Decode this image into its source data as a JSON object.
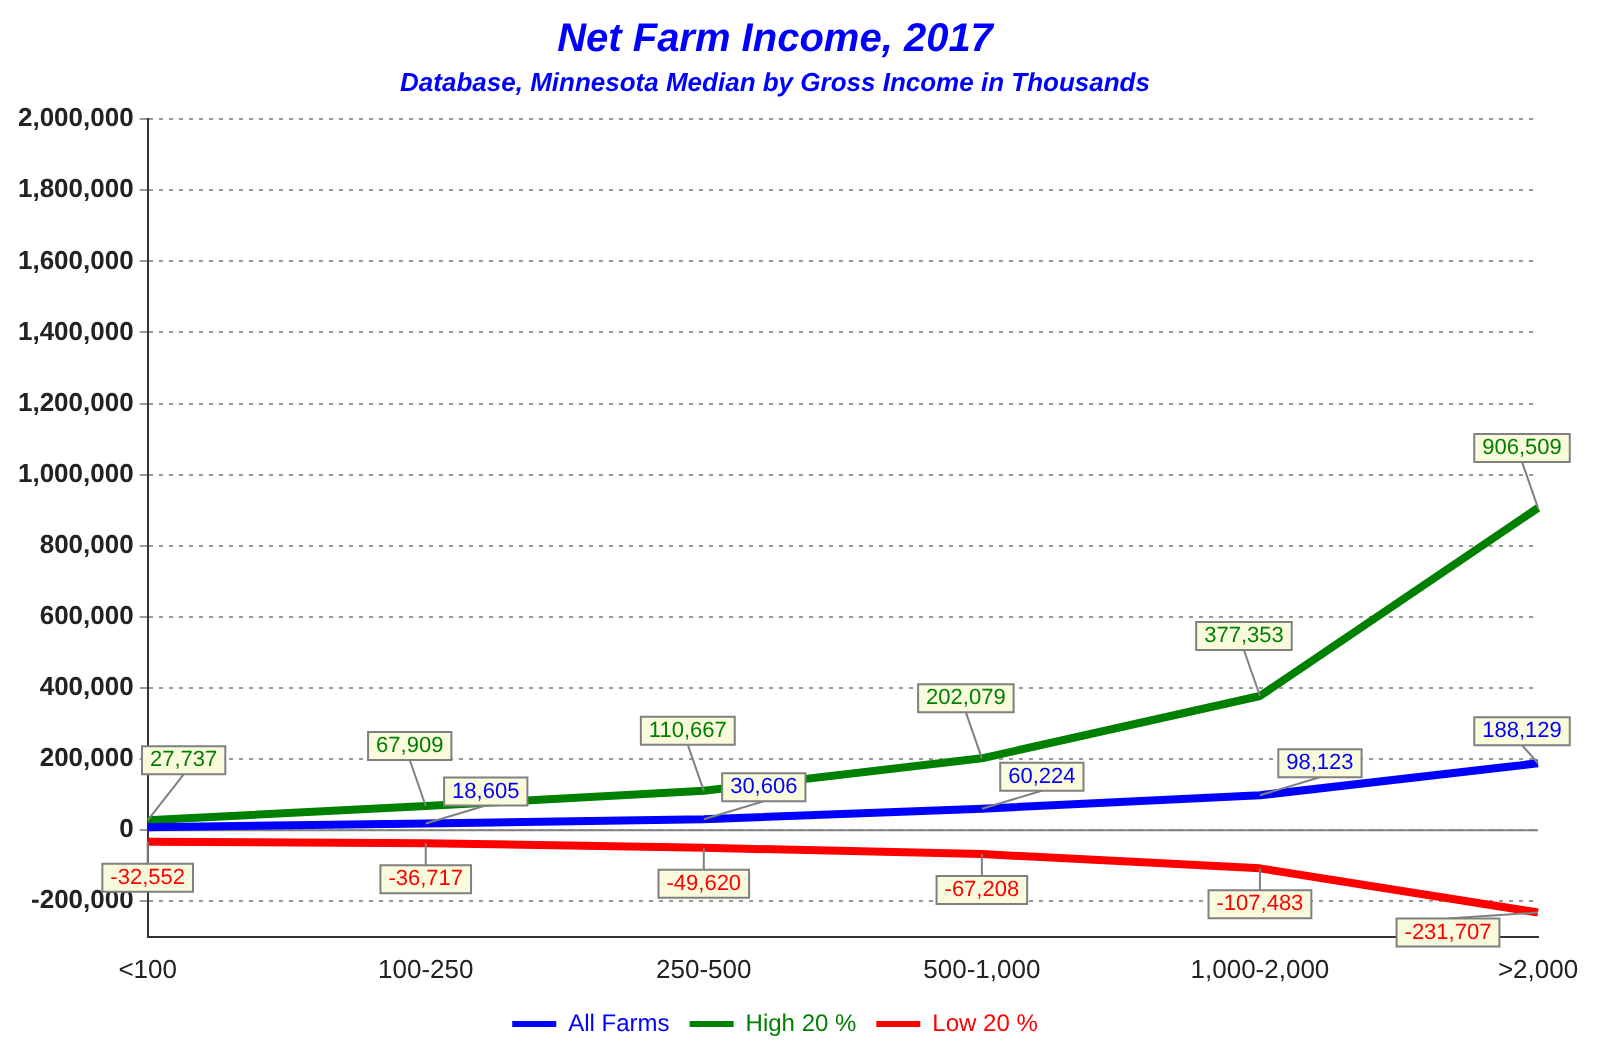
{
  "chart_data": {
    "type": "line",
    "title": "Net Farm Income, 2017",
    "subtitle": "Database, Minnesota Median by Gross Income in Thousands",
    "categories": [
      "<100",
      "100-250",
      "250-500",
      "500-1,000",
      "1,000-2,000",
      ">2,000"
    ],
    "series": [
      {
        "name": "All Farms",
        "color": "#0000ff",
        "values": [
          8000,
          18605,
          30606,
          60224,
          98123,
          188129
        ],
        "value_labels": [
          null,
          "18,605",
          "30,606",
          "60,224",
          "98,123",
          "188,129"
        ]
      },
      {
        "name": "High 20 %",
        "color": "#008000",
        "values": [
          27737,
          67909,
          110667,
          202079,
          377353,
          906509
        ],
        "value_labels": [
          "27,737",
          "67,909",
          "110,667",
          "202,079",
          "377,353",
          "906,509"
        ]
      },
      {
        "name": "Low 20 %",
        "color": "#ff0000",
        "values": [
          -32552,
          -36717,
          -49620,
          -67208,
          -107483,
          -231707
        ],
        "value_labels": [
          "-32,552",
          "-36,717",
          "-49,620",
          "-67,208",
          "-107,483",
          "-231,707"
        ]
      }
    ],
    "ylim": [
      -300000,
      2000000
    ],
    "yticks": [
      {
        "value": -200000,
        "label": "-200,000"
      },
      0,
      {
        "value": 200000,
        "label": "200,000"
      },
      {
        "value": 400000,
        "label": "400,000"
      },
      {
        "value": 600000,
        "label": "600,000"
      },
      {
        "value": 800000,
        "label": "800,000"
      },
      {
        "value": 1000000,
        "label": "1,000,000"
      },
      {
        "value": 1200000,
        "label": "1,200,000"
      },
      {
        "value": 1400000,
        "label": "1,400,000"
      },
      {
        "value": 1600000,
        "label": "1,600,000"
      },
      {
        "value": 1800000,
        "label": "1,800,000"
      },
      {
        "value": 2000000,
        "label": "2,000,000"
      }
    ],
    "grid": "y",
    "legend": "bottom",
    "marker": "none",
    "line_style": "solid",
    "ref_lines": [
      {
        "axis": "y",
        "value": 0,
        "color": "#808080"
      }
    ]
  }
}
